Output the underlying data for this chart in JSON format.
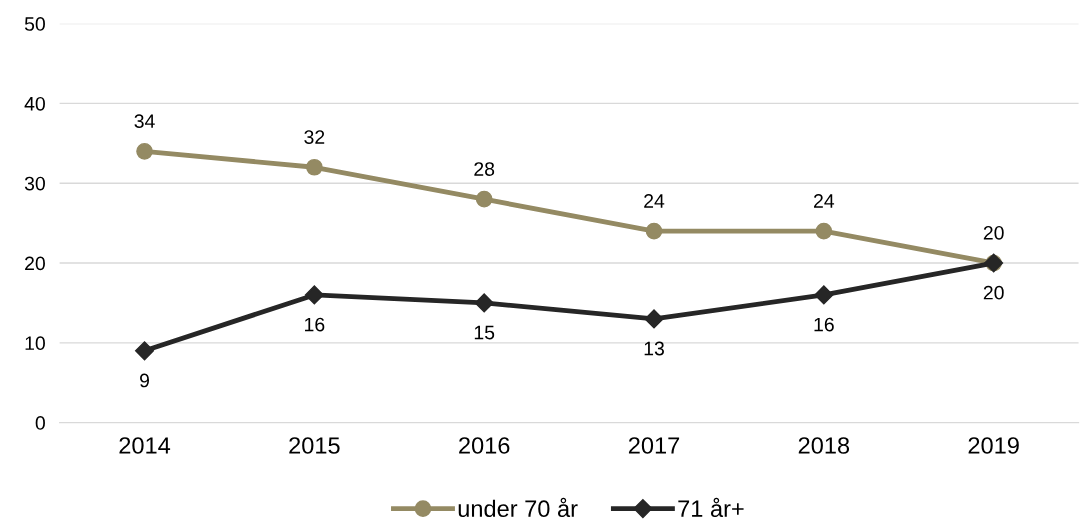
{
  "chart_data": {
    "type": "line",
    "categories": [
      "2014",
      "2015",
      "2016",
      "2017",
      "2018",
      "2019"
    ],
    "series": [
      {
        "name": "under 70 år",
        "color": "#948a63",
        "marker": "circle",
        "values": [
          34,
          32,
          28,
          24,
          24,
          20
        ]
      },
      {
        "name": "71 år+",
        "color": "#262626",
        "marker": "diamond",
        "values": [
          9,
          16,
          15,
          13,
          16,
          20
        ]
      }
    ],
    "ylim": [
      0,
      50
    ],
    "yticks": [
      0,
      10,
      20,
      30,
      40,
      50
    ],
    "grid": "y",
    "legend": "bottom",
    "data_labels": true,
    "line_style": "solid"
  }
}
